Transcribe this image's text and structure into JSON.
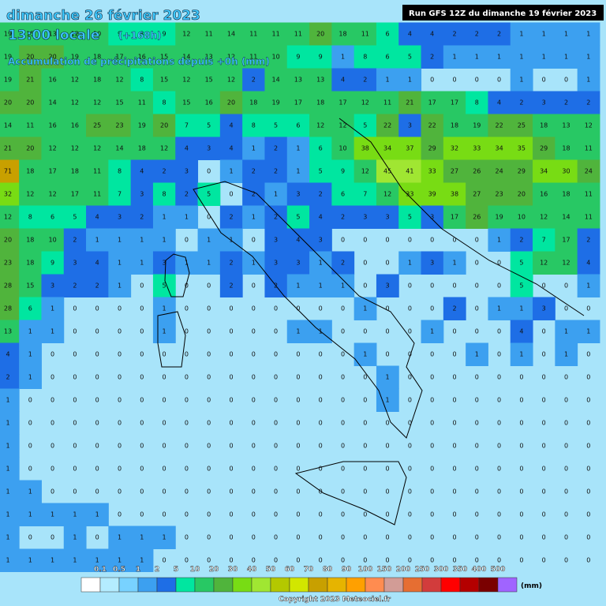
{
  "header": {
    "date": "dimanche 26 février 2023",
    "time": "13:00 locale",
    "lead": "(+168h)",
    "subtitle": "Accumulation de précipitations depuis +0h (mm)",
    "run": "Run GFS 12Z du dimanche 19 février 2023"
  },
  "grid": {
    "rows": [
      [
        19,
        15,
        13,
        12,
        10,
        9,
        8,
        9,
        12,
        11,
        14,
        11,
        11,
        11,
        20,
        18,
        11,
        6,
        4,
        4,
        2,
        2,
        2,
        1,
        1,
        1,
        1
      ],
      [
        19,
        20,
        20,
        19,
        18,
        17,
        16,
        15,
        14,
        13,
        12,
        11,
        10,
        9,
        9,
        1,
        8,
        6,
        5,
        2,
        1,
        1,
        1,
        1,
        1,
        1,
        1
      ],
      [
        19,
        21,
        16,
        12,
        18,
        12,
        8,
        15,
        12,
        15,
        12,
        2,
        14,
        13,
        13,
        4,
        2,
        1,
        1,
        0,
        0,
        0,
        0,
        1,
        0,
        0,
        1
      ],
      [
        20,
        20,
        14,
        12,
        12,
        15,
        11,
        8,
        15,
        16,
        20,
        18,
        19,
        17,
        18,
        17,
        12,
        11,
        21,
        17,
        17,
        8,
        4,
        2,
        3,
        2,
        2
      ],
      [
        14,
        11,
        16,
        16,
        25,
        23,
        19,
        20,
        7,
        5,
        4,
        8,
        5,
        6,
        12,
        12,
        5,
        22,
        3,
        22,
        18,
        19,
        22,
        25,
        18,
        13,
        12
      ],
      [
        21,
        20,
        12,
        12,
        12,
        14,
        18,
        12,
        4,
        3,
        4,
        1,
        2,
        1,
        6,
        10,
        38,
        34,
        37,
        29,
        32,
        33,
        34,
        35,
        29,
        18,
        11
      ],
      [
        71,
        18,
        17,
        18,
        11,
        8,
        4,
        2,
        3,
        0,
        1,
        2,
        2,
        1,
        5,
        9,
        12,
        45,
        41,
        33,
        27,
        26,
        24,
        29,
        34,
        30,
        24
      ],
      [
        32,
        12,
        12,
        17,
        11,
        7,
        3,
        8,
        2,
        5,
        0,
        2,
        1,
        3,
        2,
        6,
        7,
        12,
        33,
        39,
        38,
        27,
        23,
        20,
        16,
        18,
        11
      ],
      [
        12,
        8,
        6,
        5,
        4,
        3,
        2,
        1,
        1,
        0,
        2,
        1,
        2,
        5,
        4,
        2,
        3,
        3,
        5,
        3,
        17,
        26,
        19,
        10,
        12,
        14,
        11
      ],
      [
        20,
        18,
        10,
        2,
        1,
        1,
        1,
        1,
        0,
        1,
        1,
        0,
        3,
        4,
        3,
        0,
        0,
        0,
        0,
        0,
        0,
        0,
        1,
        2,
        7,
        17,
        2
      ],
      [
        23,
        18,
        9,
        3,
        4,
        1,
        1,
        3,
        1,
        1,
        2,
        1,
        3,
        3,
        1,
        2,
        0,
        0,
        1,
        3,
        1,
        0,
        0,
        5,
        12,
        12,
        4
      ],
      [
        28,
        15,
        3,
        2,
        2,
        1,
        0,
        5,
        0,
        0,
        2,
        0,
        2,
        1,
        1,
        1,
        0,
        3,
        0,
        0,
        0,
        0,
        0,
        5,
        0,
        0,
        1
      ],
      [
        28,
        6,
        1,
        0,
        0,
        0,
        0,
        1,
        0,
        0,
        0,
        0,
        0,
        0,
        0,
        0,
        1,
        0,
        0,
        0,
        2,
        0,
        1,
        1,
        3,
        0,
        0
      ],
      [
        13,
        1,
        1,
        0,
        0,
        0,
        0,
        1,
        0,
        0,
        0,
        0,
        0,
        1,
        1,
        0,
        0,
        0,
        0,
        1,
        0,
        0,
        0,
        4,
        0,
        1,
        1
      ],
      [
        4,
        1,
        0,
        0,
        0,
        0,
        0,
        0,
        0,
        0,
        0,
        0,
        0,
        0,
        0,
        0,
        1,
        0,
        0,
        0,
        0,
        1,
        0,
        1,
        0,
        1,
        0
      ],
      [
        2,
        1,
        0,
        0,
        0,
        0,
        0,
        0,
        0,
        0,
        0,
        0,
        0,
        0,
        0,
        0,
        0,
        1,
        0,
        0,
        0,
        0,
        0,
        0,
        0,
        0,
        0
      ],
      [
        1,
        0,
        0,
        0,
        0,
        0,
        0,
        0,
        0,
        0,
        0,
        0,
        0,
        0,
        0,
        0,
        0,
        1,
        0,
        0,
        0,
        0,
        0,
        0,
        0,
        0,
        0
      ],
      [
        1,
        0,
        0,
        0,
        0,
        0,
        0,
        0,
        0,
        0,
        0,
        0,
        0,
        0,
        0,
        0,
        0,
        0,
        0,
        0,
        0,
        0,
        0,
        0,
        0,
        0,
        0
      ],
      [
        1,
        0,
        0,
        0,
        0,
        0,
        0,
        0,
        0,
        0,
        0,
        0,
        0,
        0,
        0,
        0,
        0,
        0,
        0,
        0,
        0,
        0,
        0,
        0,
        0,
        0,
        0
      ],
      [
        1,
        0,
        0,
        0,
        0,
        0,
        0,
        0,
        0,
        0,
        0,
        0,
        0,
        0,
        0,
        0,
        0,
        0,
        0,
        0,
        0,
        0,
        0,
        0,
        0,
        0,
        0
      ],
      [
        1,
        1,
        0,
        0,
        0,
        0,
        0,
        0,
        0,
        0,
        0,
        0,
        0,
        0,
        0,
        0,
        0,
        0,
        0,
        0,
        0,
        0,
        0,
        0,
        0,
        0,
        0
      ],
      [
        1,
        1,
        1,
        1,
        1,
        0,
        0,
        0,
        0,
        0,
        0,
        0,
        0,
        0,
        0,
        0,
        0,
        0,
        0,
        0,
        0,
        0,
        0,
        0,
        0,
        0,
        0
      ],
      [
        1,
        0,
        0,
        1,
        0,
        1,
        1,
        1,
        0,
        0,
        0,
        0,
        0,
        0,
        0,
        0,
        0,
        0,
        0,
        0,
        0,
        0,
        0,
        0,
        0,
        0,
        0
      ],
      [
        1,
        1,
        1,
        1,
        1,
        1,
        1,
        0,
        0,
        0,
        0,
        0,
        0,
        0,
        0,
        0,
        0,
        0,
        0,
        0,
        0,
        0,
        0,
        0,
        0,
        0,
        0
      ]
    ]
  },
  "legend": {
    "levels": [
      0.1,
      0.5,
      1,
      2,
      5,
      10,
      20,
      30,
      40,
      50,
      60,
      70,
      80,
      90,
      100,
      150,
      200,
      250,
      300,
      350,
      400,
      500
    ],
    "colors": [
      "#ffffff",
      "#b4ecff",
      "#78d2ff",
      "#3ca0f0",
      "#1e6ee6",
      "#00e6a0",
      "#28c864",
      "#50b43c",
      "#78dc14",
      "#a0e632",
      "#b4c800",
      "#d2e600",
      "#c8a000",
      "#e6b400",
      "#ffa000",
      "#ff8c50",
      "#d29c96",
      "#e66e32",
      "#d23c3c",
      "#ff0000",
      "#b40000",
      "#7a0000",
      "#a064ff"
    ],
    "unit": "(mm)"
  },
  "footer": {
    "copyright": "Copyright 2023 Meteociel.fr"
  }
}
